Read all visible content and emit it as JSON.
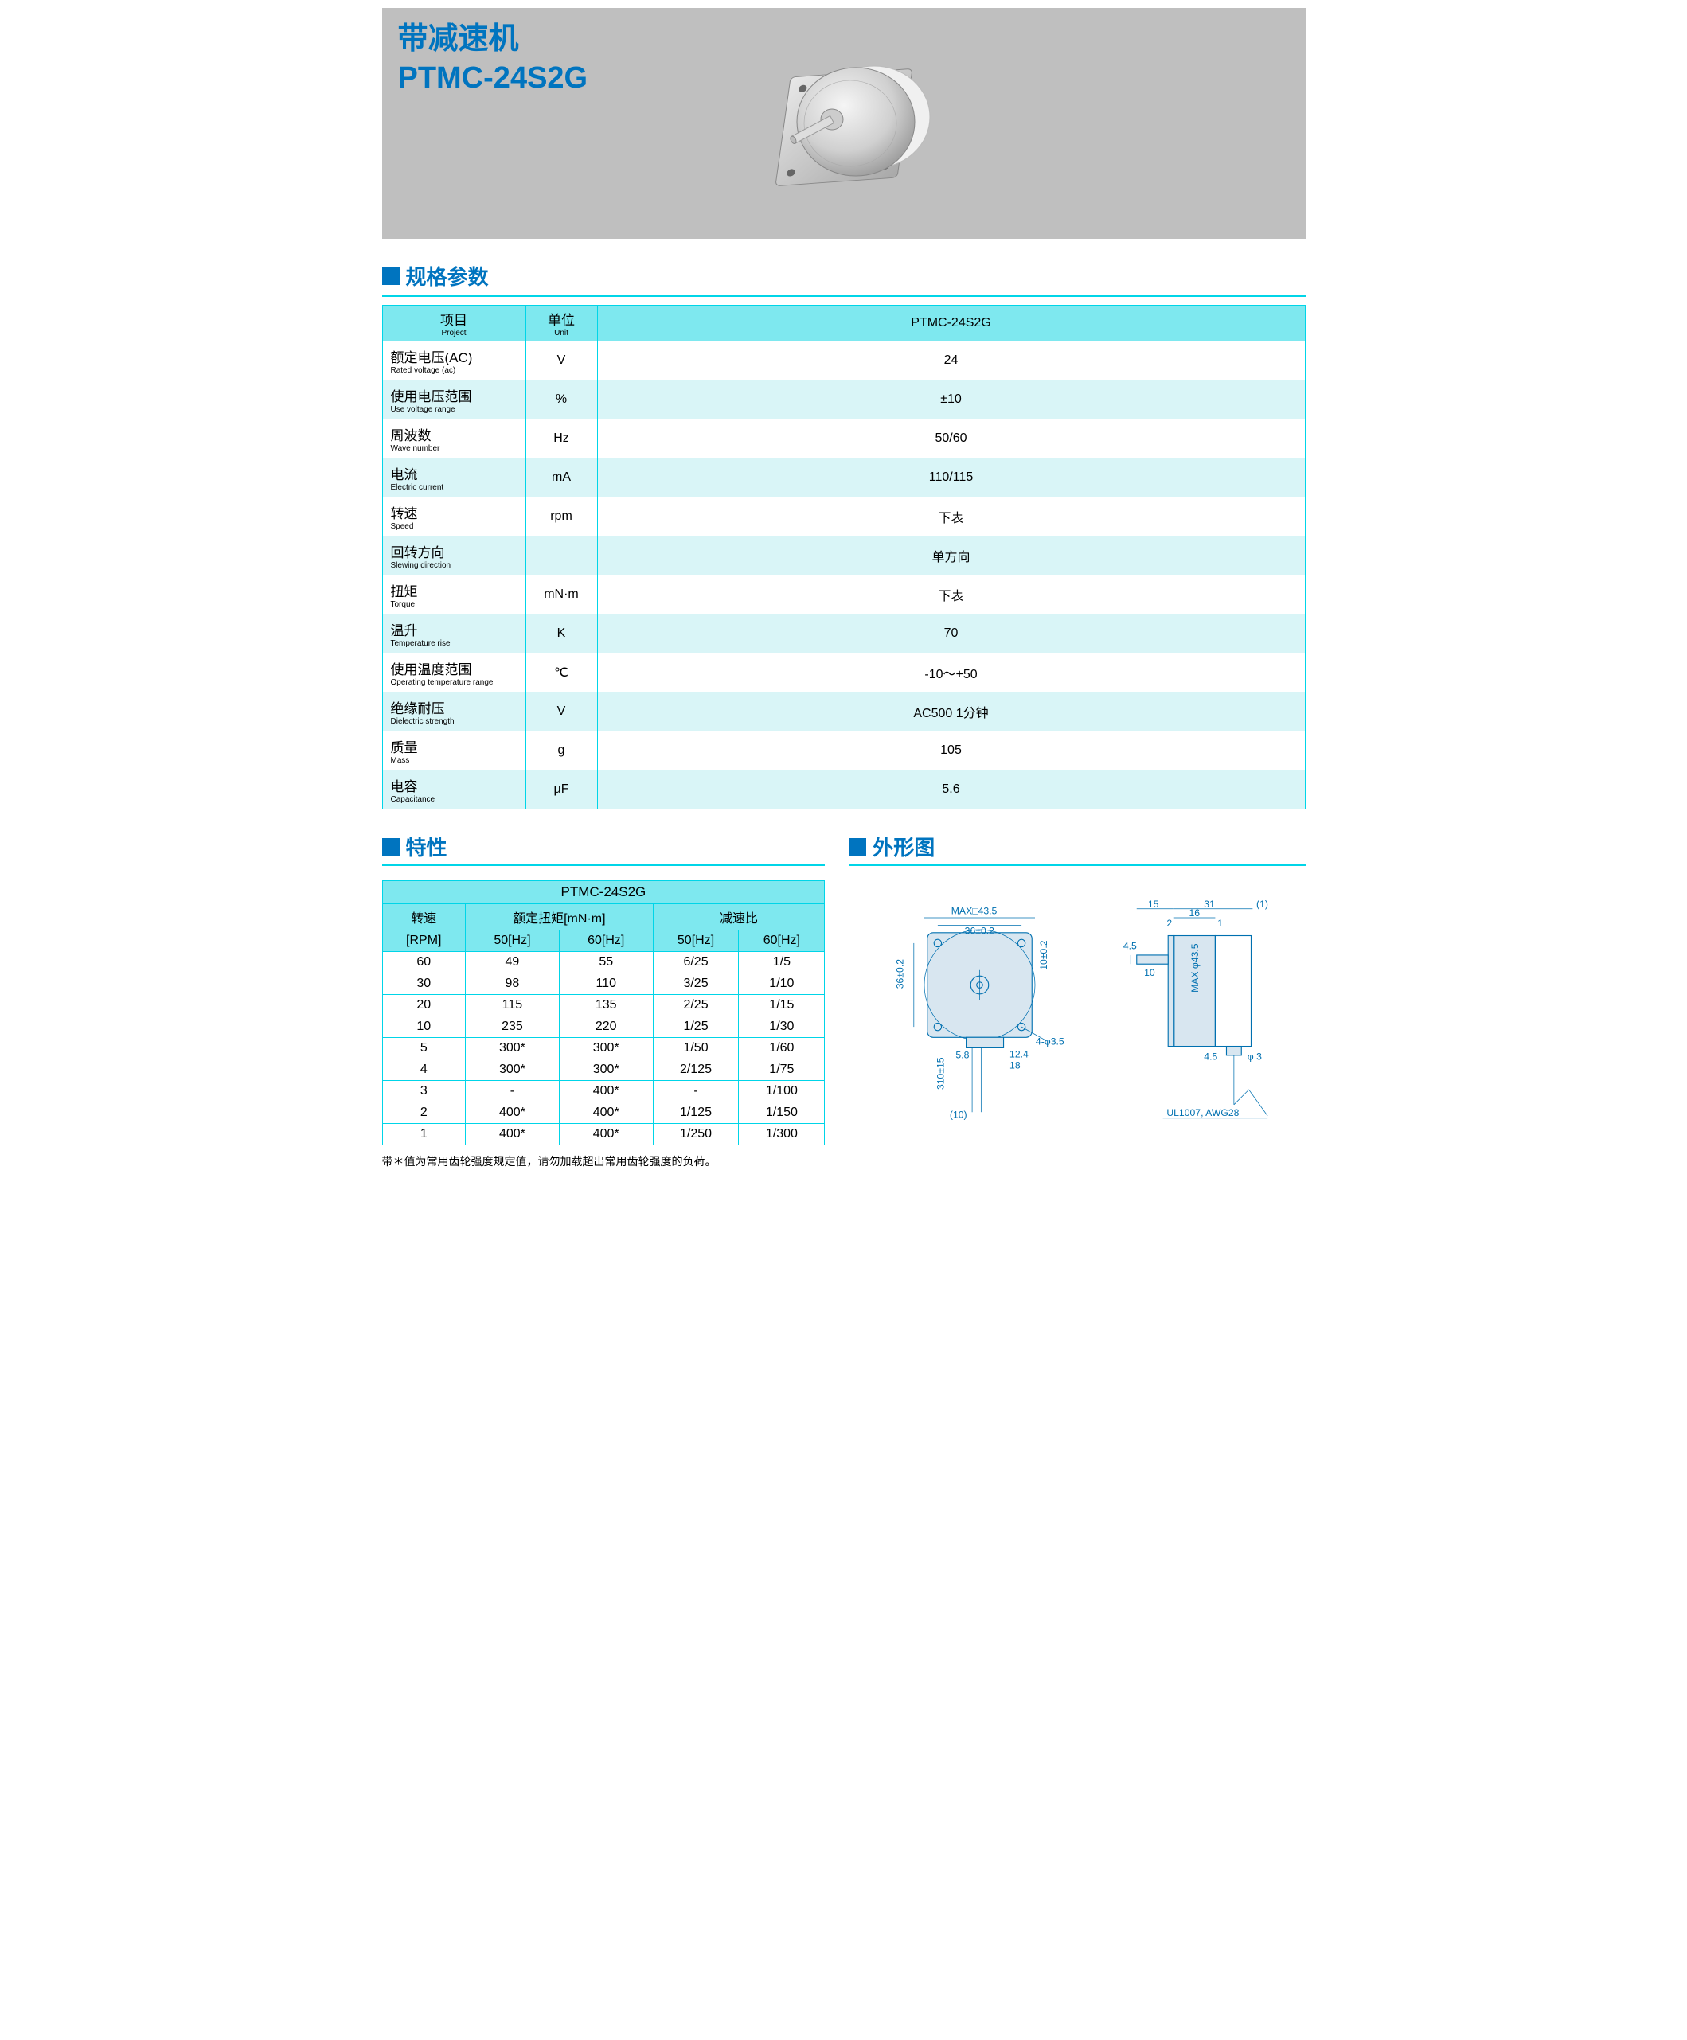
{
  "hero": {
    "line1": "带减速机",
    "line2": "PTMC-24S2G"
  },
  "spec": {
    "heading": "规格参数",
    "col_project_cn": "项目",
    "col_project_en": "Project",
    "col_unit_cn": "单位",
    "col_unit_en": "Unit",
    "col_model": "PTMC-24S2G",
    "rows": [
      {
        "cn": "额定电压(AC)",
        "en": "Rated voltage (ac)",
        "unit": "V",
        "val": "24"
      },
      {
        "cn": "使用电压范围",
        "en": "Use voltage range",
        "unit": "%",
        "val": "±10"
      },
      {
        "cn": "周波数",
        "en": "Wave number",
        "unit": "Hz",
        "val": "50/60"
      },
      {
        "cn": "电流",
        "en": "Electric current",
        "unit": "mA",
        "val": "110/115"
      },
      {
        "cn": "转速",
        "en": "Speed",
        "unit": "rpm",
        "val": "下表"
      },
      {
        "cn": "回转方向",
        "en": "Slewing direction",
        "unit": "",
        "val": "单方向"
      },
      {
        "cn": "扭矩",
        "en": "Torque",
        "unit": "mN·m",
        "val": "下表"
      },
      {
        "cn": "温升",
        "en": "Temperature rise",
        "unit": "K",
        "val": "70"
      },
      {
        "cn": "使用温度范围",
        "en": "Operating temperature range",
        "unit": "℃",
        "val": "-10～+50"
      },
      {
        "cn": "绝缘耐压",
        "en": "Dielectric strength",
        "unit": "V",
        "val": "AC500  1分钟"
      },
      {
        "cn": "质量",
        "en": "Mass",
        "unit": "g",
        "val": "105"
      },
      {
        "cn": "电容",
        "en": "Capacitance",
        "unit": "μF",
        "val": "5.6"
      }
    ]
  },
  "char": {
    "heading": "特性",
    "title": "PTMC-24S2G",
    "h_speed": "转速",
    "h_torque": "额定扭矩[mN·m]",
    "h_ratio": "减速比",
    "h_rpm": "[RPM]",
    "h_50hz": "50[Hz]",
    "h_60hz": "60[Hz]",
    "rows": [
      {
        "rpm": "60",
        "t50": "49",
        "t60": "55",
        "r50": "6/25",
        "r60": "1/5"
      },
      {
        "rpm": "30",
        "t50": "98",
        "t60": "110",
        "r50": "3/25",
        "r60": "1/10"
      },
      {
        "rpm": "20",
        "t50": "115",
        "t60": "135",
        "r50": "2/25",
        "r60": "1/15"
      },
      {
        "rpm": "10",
        "t50": "235",
        "t60": "220",
        "r50": "1/25",
        "r60": "1/30"
      },
      {
        "rpm": "5",
        "t50": "300*",
        "t60": "300*",
        "r50": "1/50",
        "r60": "1/60"
      },
      {
        "rpm": "4",
        "t50": "300*",
        "t60": "300*",
        "r50": "2/125",
        "r60": "1/75"
      },
      {
        "rpm": "3",
        "t50": "-",
        "t60": "400*",
        "r50": "-",
        "r60": "1/100"
      },
      {
        "rpm": "2",
        "t50": "400*",
        "t60": "400*",
        "r50": "1/125",
        "r60": "1/150"
      },
      {
        "rpm": "1",
        "t50": "400*",
        "t60": "400*",
        "r50": "1/250",
        "r60": "1/300"
      }
    ],
    "footnote": "带＊值为常用齿轮强度规定值，请勿加载超出常用齿轮强度的负荷。"
  },
  "dim": {
    "heading": "外形图",
    "labels": {
      "max_sq": "MAX□43.5",
      "w36": "36±0.2",
      "h36": "36±0.2",
      "h10": "10±0.2",
      "holes": "4-φ3.5",
      "w18": "18",
      "w12_4": "12.4",
      "h5_8": "5.8",
      "lead": "310±15",
      "lead10": "(10)",
      "top15": "15",
      "top31": "31",
      "top1p": "(1)",
      "top16": "16",
      "top2": "2",
      "top1": "1",
      "side4_5": "4.5",
      "side10": "10",
      "dia": "MAX φ43.5",
      "bot4_5": "4.5",
      "bot_g": "φ 3",
      "wire": "UL1007, AWG28"
    }
  },
  "colors": {
    "accent_blue": "#0074bf",
    "cyan_border": "#00d5e8",
    "cyan_header": "#7ee8ef",
    "cyan_alt": "#d9f5f7",
    "hero_bg": "#bfbfbf",
    "drawing": "#0070b0"
  }
}
